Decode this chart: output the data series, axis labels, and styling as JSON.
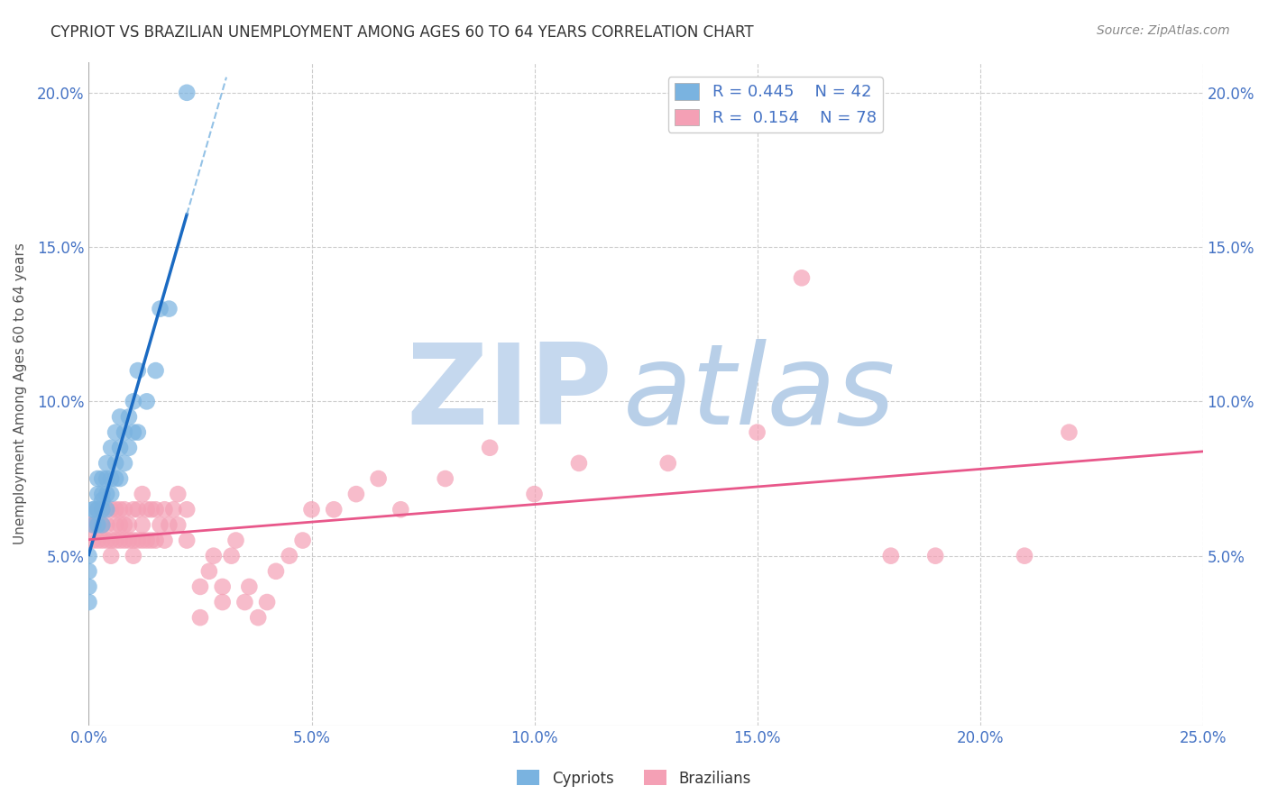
{
  "title": "CYPRIOT VS BRAZILIAN UNEMPLOYMENT AMONG AGES 60 TO 64 YEARS CORRELATION CHART",
  "source": "Source: ZipAtlas.com",
  "ylabel": "Unemployment Among Ages 60 to 64 years",
  "xlim": [
    0,
    0.25
  ],
  "ylim": [
    -0.005,
    0.21
  ],
  "xticks": [
    0.0,
    0.05,
    0.1,
    0.15,
    0.2,
    0.25
  ],
  "yticks": [
    0.05,
    0.1,
    0.15,
    0.2
  ],
  "xticklabels": [
    "0.0%",
    "5.0%",
    "10.0%",
    "15.0%",
    "20.0%",
    "25.0%"
  ],
  "yticklabels": [
    "5.0%",
    "10.0%",
    "15.0%",
    "20.0%"
  ],
  "right_yticklabels": [
    "5.0%",
    "10.0%",
    "15.0%",
    "20.0%"
  ],
  "right_yticks": [
    0.05,
    0.1,
    0.15,
    0.2
  ],
  "cypriot_R": 0.445,
  "cypriot_N": 42,
  "brazilian_R": 0.154,
  "brazilian_N": 78,
  "cypriot_color": "#7ab3e0",
  "brazilian_color": "#f4a0b5",
  "cypriot_line_color": "#1a6ac2",
  "brazilian_line_color": "#e8578a",
  "watermark_zip": "ZIP",
  "watermark_atlas": "atlas",
  "watermark_color_zip": "#c5d8ee",
  "watermark_color_atlas": "#b8cfe8",
  "background_color": "#ffffff",
  "grid_color": "#cccccc",
  "cypriot_x": [
    0.0,
    0.0,
    0.0,
    0.0,
    0.001,
    0.001,
    0.001,
    0.002,
    0.002,
    0.002,
    0.002,
    0.003,
    0.003,
    0.003,
    0.003,
    0.003,
    0.004,
    0.004,
    0.004,
    0.004,
    0.005,
    0.005,
    0.005,
    0.006,
    0.006,
    0.006,
    0.007,
    0.007,
    0.007,
    0.008,
    0.008,
    0.009,
    0.009,
    0.01,
    0.01,
    0.011,
    0.011,
    0.013,
    0.015,
    0.016,
    0.018,
    0.022
  ],
  "cypriot_y": [
    0.035,
    0.04,
    0.045,
    0.05,
    0.06,
    0.065,
    0.065,
    0.06,
    0.065,
    0.07,
    0.075,
    0.06,
    0.065,
    0.068,
    0.07,
    0.075,
    0.065,
    0.07,
    0.075,
    0.08,
    0.07,
    0.075,
    0.085,
    0.075,
    0.08,
    0.09,
    0.075,
    0.085,
    0.095,
    0.08,
    0.09,
    0.085,
    0.095,
    0.09,
    0.1,
    0.09,
    0.11,
    0.1,
    0.11,
    0.13,
    0.13,
    0.2
  ],
  "brazilian_x": [
    0.0,
    0.001,
    0.001,
    0.002,
    0.002,
    0.003,
    0.003,
    0.003,
    0.004,
    0.004,
    0.005,
    0.005,
    0.005,
    0.006,
    0.006,
    0.006,
    0.007,
    0.007,
    0.007,
    0.008,
    0.008,
    0.008,
    0.009,
    0.009,
    0.01,
    0.01,
    0.01,
    0.011,
    0.011,
    0.012,
    0.012,
    0.012,
    0.013,
    0.013,
    0.014,
    0.014,
    0.015,
    0.015,
    0.016,
    0.017,
    0.017,
    0.018,
    0.019,
    0.02,
    0.02,
    0.022,
    0.022,
    0.025,
    0.025,
    0.027,
    0.028,
    0.03,
    0.03,
    0.032,
    0.033,
    0.035,
    0.036,
    0.038,
    0.04,
    0.042,
    0.045,
    0.048,
    0.05,
    0.055,
    0.06,
    0.065,
    0.07,
    0.08,
    0.09,
    0.1,
    0.11,
    0.13,
    0.15,
    0.16,
    0.18,
    0.19,
    0.21,
    0.22
  ],
  "brazilian_y": [
    0.06,
    0.055,
    0.06,
    0.055,
    0.065,
    0.055,
    0.06,
    0.065,
    0.055,
    0.06,
    0.05,
    0.055,
    0.065,
    0.055,
    0.06,
    0.065,
    0.055,
    0.06,
    0.065,
    0.055,
    0.06,
    0.065,
    0.055,
    0.06,
    0.05,
    0.055,
    0.065,
    0.055,
    0.065,
    0.055,
    0.06,
    0.07,
    0.055,
    0.065,
    0.055,
    0.065,
    0.055,
    0.065,
    0.06,
    0.055,
    0.065,
    0.06,
    0.065,
    0.06,
    0.07,
    0.055,
    0.065,
    0.03,
    0.04,
    0.045,
    0.05,
    0.035,
    0.04,
    0.05,
    0.055,
    0.035,
    0.04,
    0.03,
    0.035,
    0.045,
    0.05,
    0.055,
    0.065,
    0.065,
    0.07,
    0.075,
    0.065,
    0.075,
    0.085,
    0.07,
    0.08,
    0.08,
    0.09,
    0.14,
    0.05,
    0.05,
    0.05,
    0.09
  ]
}
